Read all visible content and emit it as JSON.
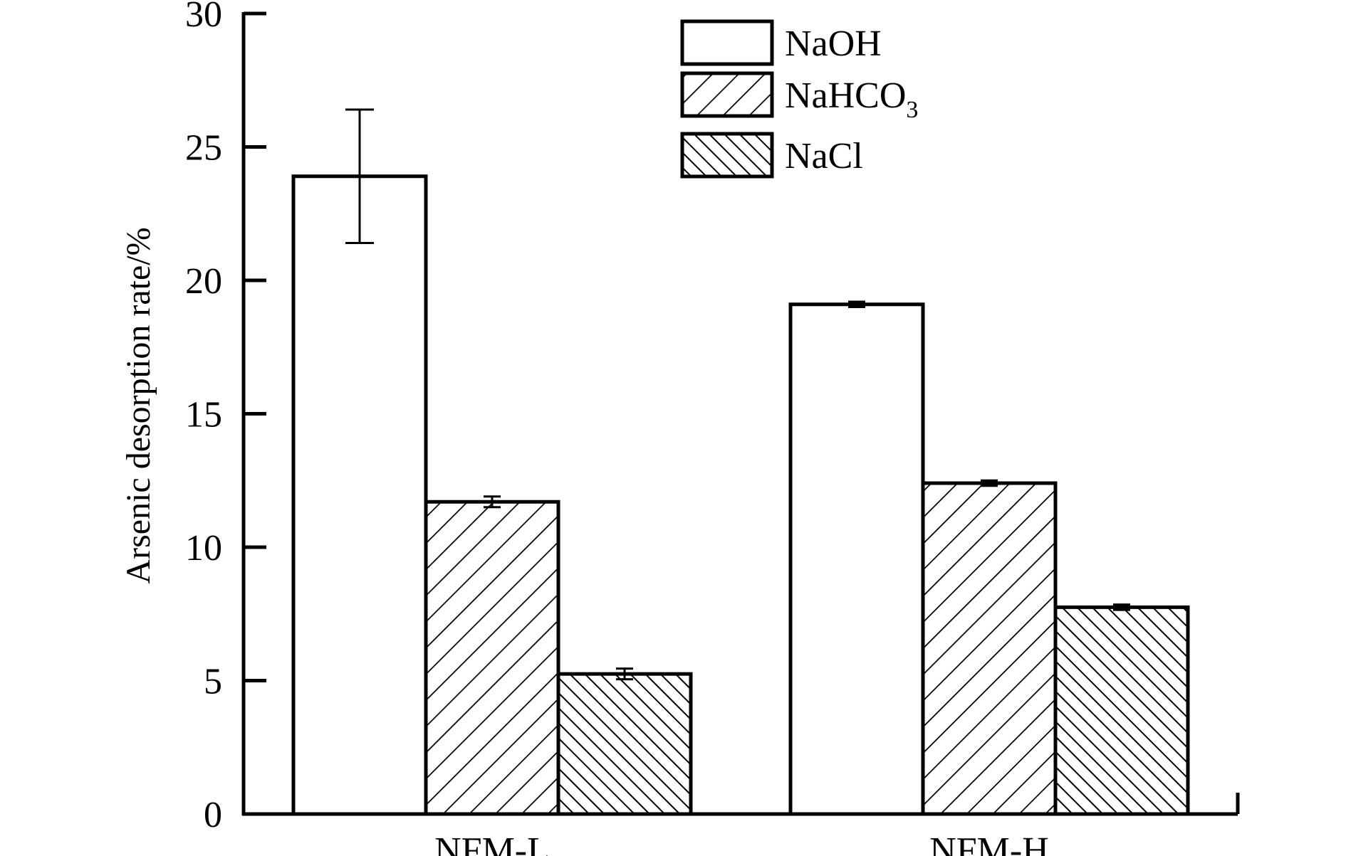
{
  "chart_data": {
    "type": "bar",
    "categories": [
      "NFM-L",
      "NFM-H"
    ],
    "series": [
      {
        "name": "NaOH",
        "legend_main": "NaOH",
        "legend_sub": "",
        "pattern": "none",
        "values": [
          23.9,
          19.1
        ],
        "errors": [
          2.5,
          0.1
        ]
      },
      {
        "name": "NaHCO3",
        "legend_main": "NaHCO",
        "legend_sub": "3",
        "pattern": "forward-hatch",
        "values": [
          11.7,
          12.4
        ],
        "errors": [
          0.2,
          0.1
        ]
      },
      {
        "name": "NaCl",
        "legend_main": "NaCl",
        "legend_sub": "",
        "pattern": "back-hatch",
        "values": [
          5.25,
          7.75
        ],
        "errors": [
          0.2,
          0.1
        ]
      }
    ],
    "title": "",
    "xlabel": "",
    "ylabel": "Arsenic desorption rate/%",
    "ylim": [
      0,
      30
    ],
    "yticks": [
      "0",
      "5",
      "10",
      "15",
      "20",
      "25",
      "30"
    ],
    "grid": false,
    "legend_position": "top-center",
    "colors": {
      "bar_fill": "#ffffff",
      "stroke": "#000000"
    }
  }
}
